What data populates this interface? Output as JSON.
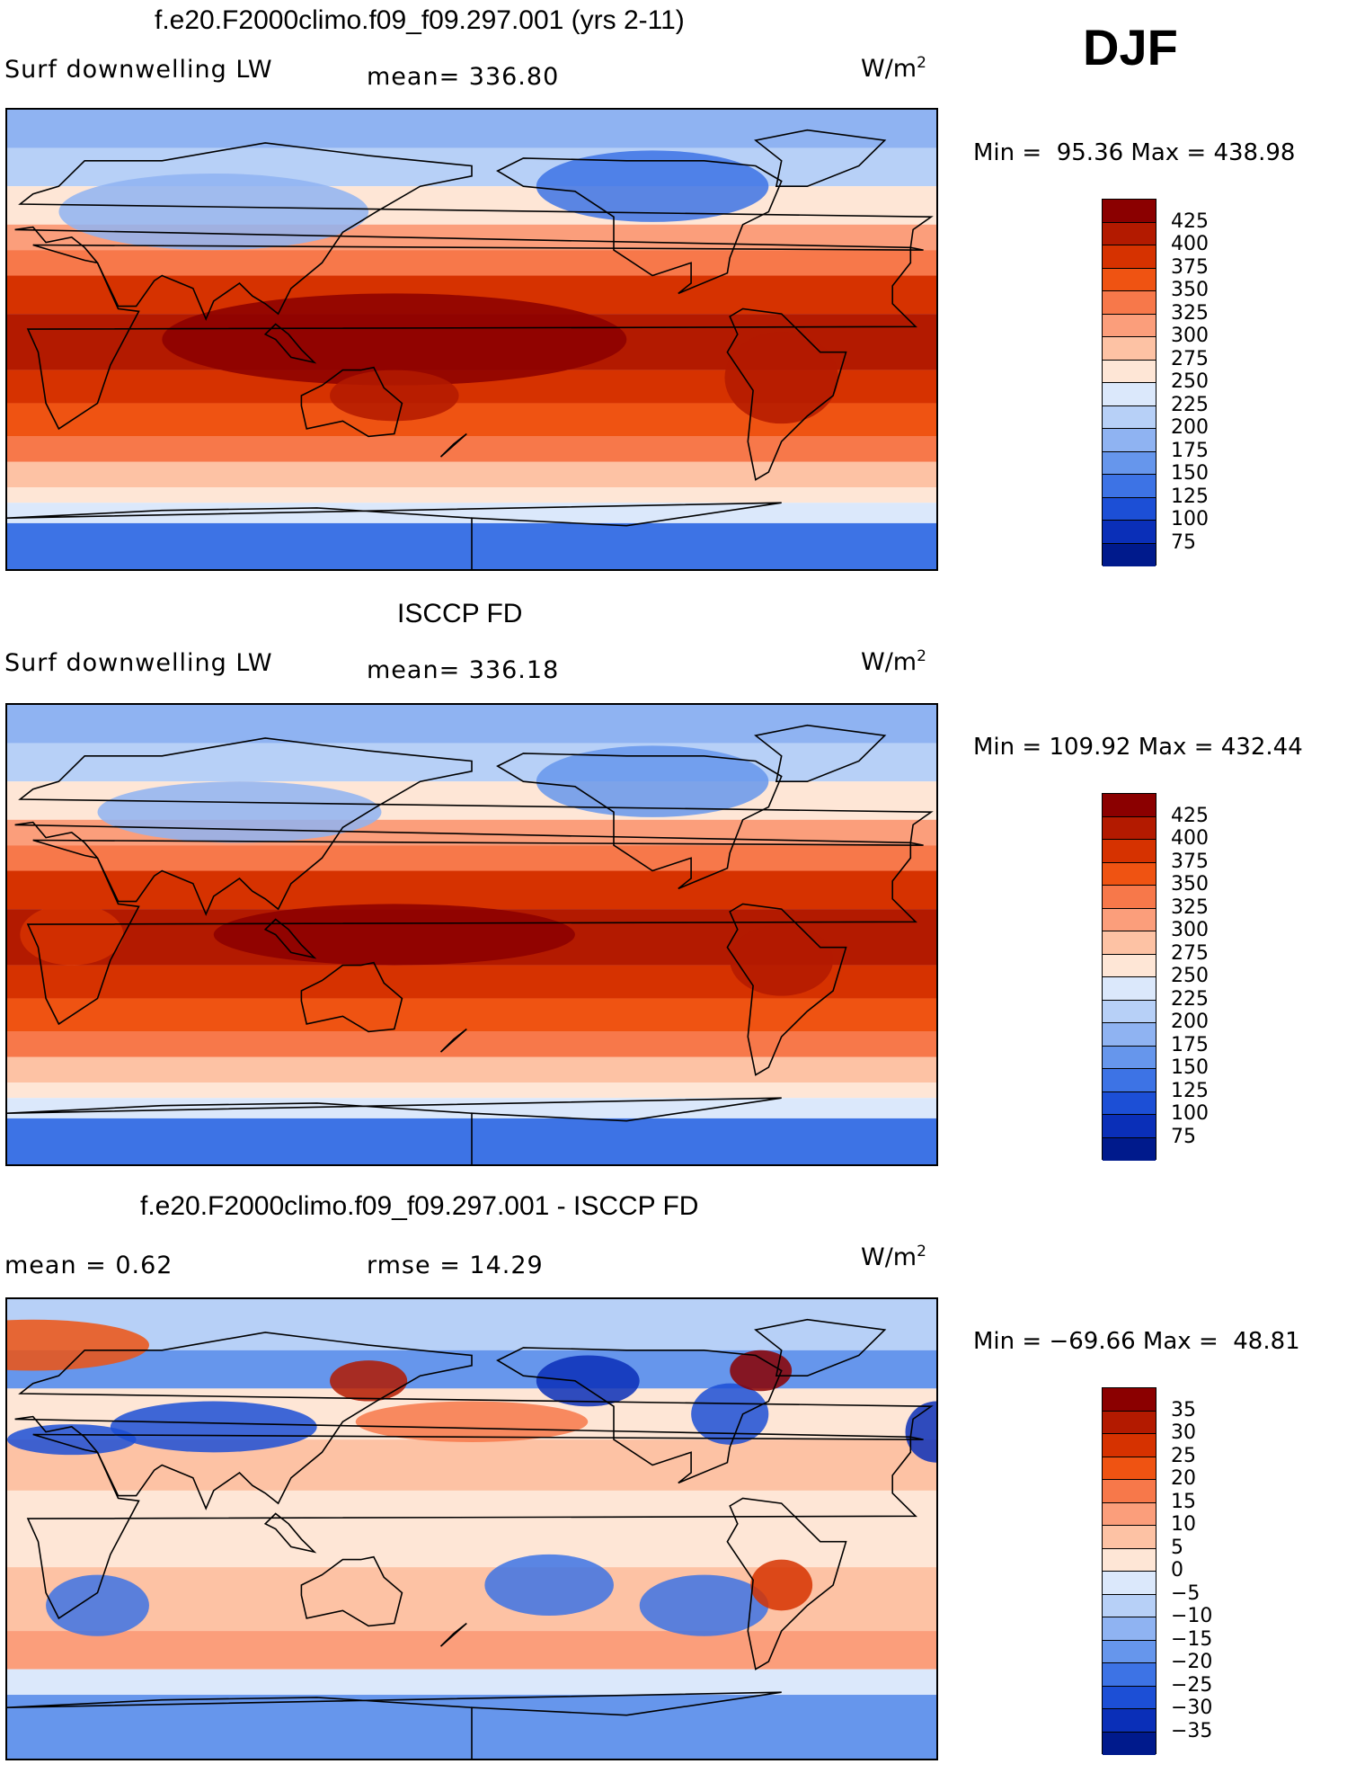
{
  "season": "DJF",
  "icons": {
    "continents": "world-coastline-outline"
  },
  "panels": [
    {
      "id": "model",
      "title": "f.e20.F2000climo.f09_f09.297.001 (yrs 2-11)",
      "variable": "Surf downwelling LW",
      "mean_text": "mean= 336.80",
      "units_base": "W/m",
      "units_exp": "2",
      "minmax": "Min =  95.36 Max = 438.98",
      "colorbar": {
        "labels": [
          "425",
          "400",
          "375",
          "350",
          "325",
          "300",
          "275",
          "250",
          "225",
          "200",
          "175",
          "150",
          "125",
          "100",
          "75"
        ],
        "colors": [
          "#8b0000",
          "#b31a00",
          "#d63200",
          "#ef5312",
          "#f7784a",
          "#fb9e7b",
          "#fdc2a4",
          "#fee6d6",
          "#dbe8fb",
          "#b7d0f7",
          "#8fb3f2",
          "#6696ec",
          "#3d73e5",
          "#1c4fd6",
          "#0a2fb8",
          "#001a8c"
        ]
      },
      "map_field": "model"
    },
    {
      "id": "obs",
      "title": "ISCCP FD",
      "variable": "Surf downwelling LW",
      "mean_text": "mean= 336.18",
      "units_base": "W/m",
      "units_exp": "2",
      "minmax": "Min = 109.92 Max = 432.44",
      "colorbar": {
        "labels": [
          "425",
          "400",
          "375",
          "350",
          "325",
          "300",
          "275",
          "250",
          "225",
          "200",
          "175",
          "150",
          "125",
          "100",
          "75"
        ],
        "colors": [
          "#8b0000",
          "#b31a00",
          "#d63200",
          "#ef5312",
          "#f7784a",
          "#fb9e7b",
          "#fdc2a4",
          "#fee6d6",
          "#dbe8fb",
          "#b7d0f7",
          "#8fb3f2",
          "#6696ec",
          "#3d73e5",
          "#1c4fd6",
          "#0a2fb8",
          "#001a8c"
        ]
      },
      "map_field": "obs"
    },
    {
      "id": "diff",
      "title": "f.e20.F2000climo.f09_f09.297.001 - ISCCP FD",
      "variable": "mean =    0.62",
      "mean_text": "rmse =   14.29",
      "units_base": "W/m",
      "units_exp": "2",
      "minmax": "Min = −69.66 Max =  48.81",
      "colorbar": {
        "labels": [
          "35",
          "30",
          "25",
          "20",
          "15",
          "10",
          "5",
          "0",
          "−5",
          "−10",
          "−15",
          "−20",
          "−25",
          "−30",
          "−35"
        ],
        "colors": [
          "#8b0000",
          "#b31a00",
          "#d63200",
          "#ef5312",
          "#f7784a",
          "#fb9e7b",
          "#fdc2a4",
          "#fee6d6",
          "#dbe8fb",
          "#b7d0f7",
          "#8fb3f2",
          "#6696ec",
          "#3d73e5",
          "#1c4fd6",
          "#0a2fb8",
          "#001a8c"
        ]
      },
      "map_field": "diff"
    }
  ]
}
